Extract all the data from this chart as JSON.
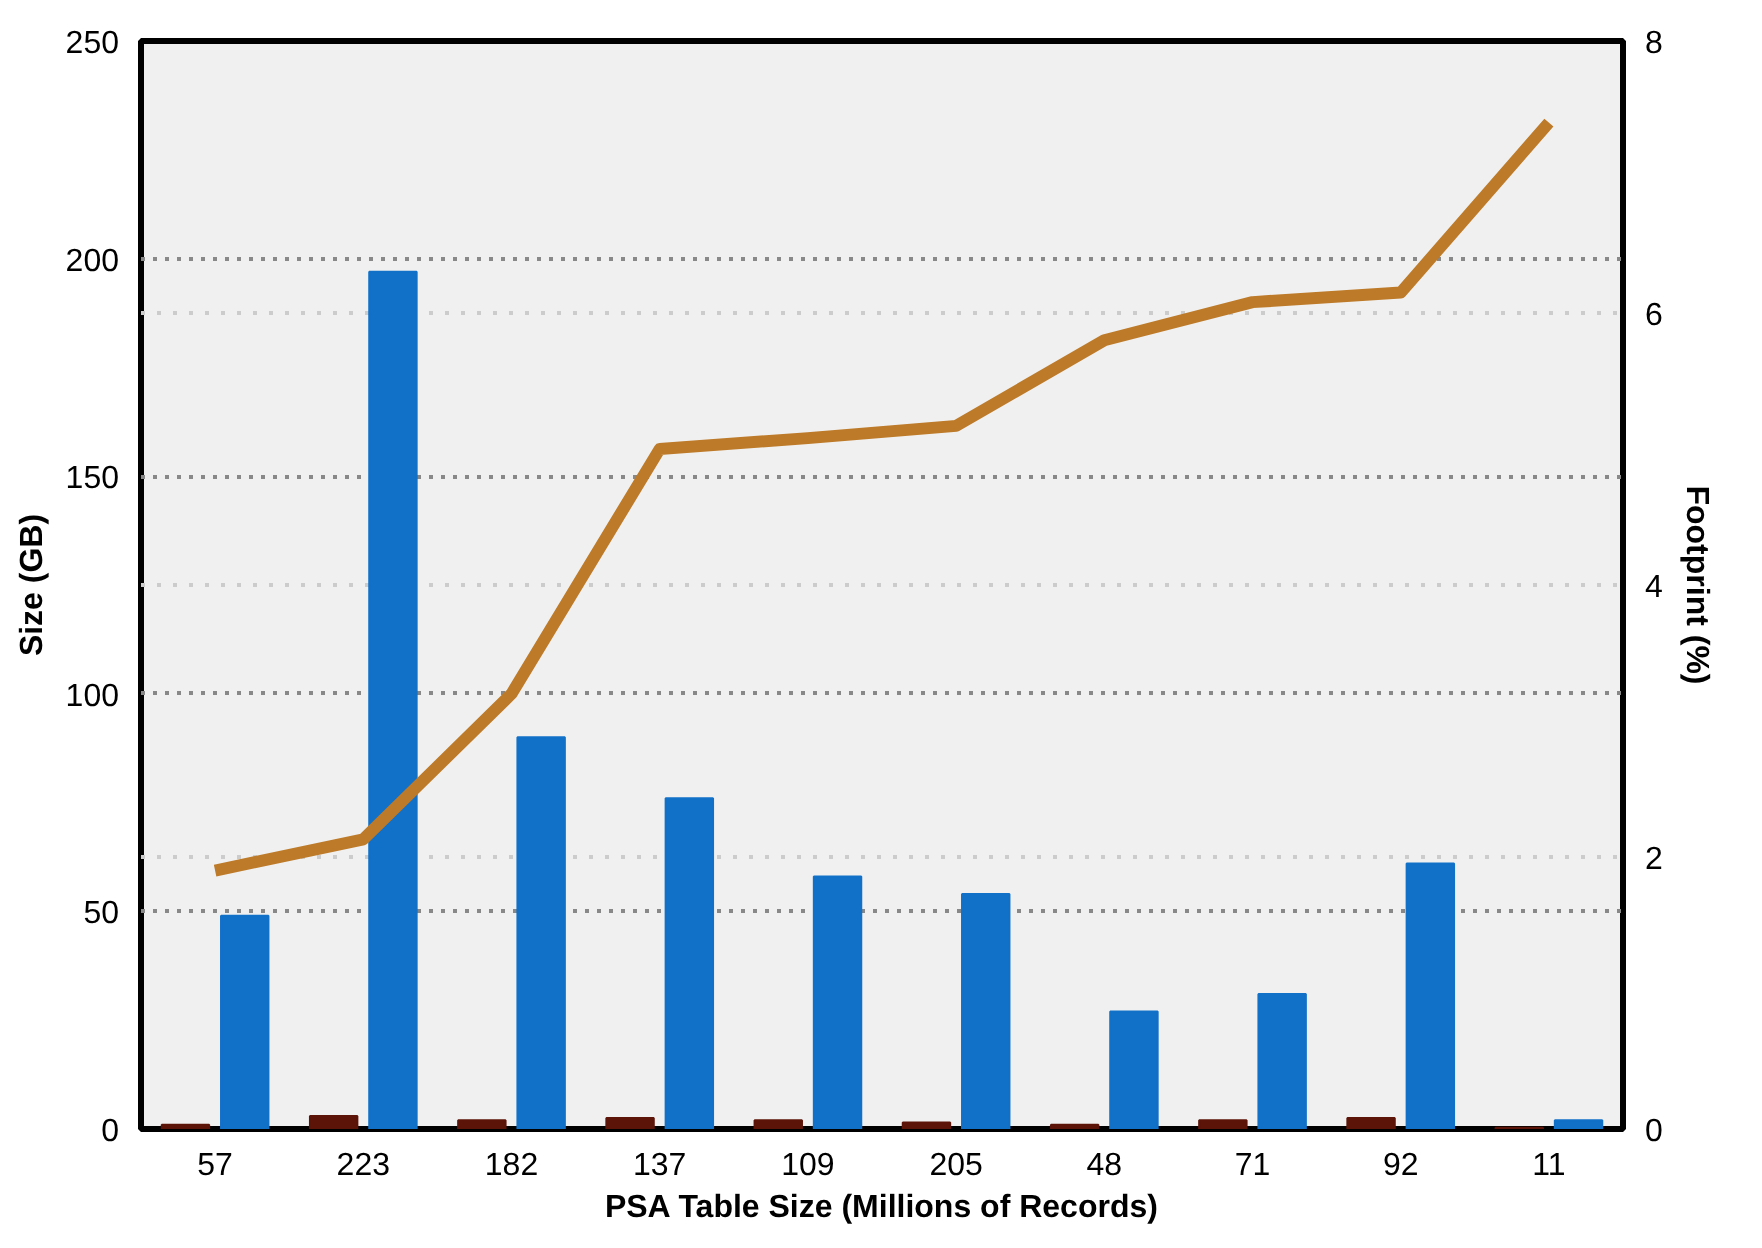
{
  "chart_data": {
    "type": "bar",
    "xlabel": "PSA Table Size (Millions of Records)",
    "ylabel": "Size (GB)",
    "y2label": "Footprint (%)",
    "categories": [
      "57",
      "223",
      "182",
      "137",
      "109",
      "205",
      "48",
      "71",
      "92",
      "11"
    ],
    "series": [
      {
        "color": "#5c1408",
        "values": [
          1,
          3,
          2,
          2.5,
          2,
          1.5,
          1,
          2,
          2.5,
          0.3
        ]
      },
      {
        "color": "#1170c8",
        "values": [
          49,
          197,
          90,
          76,
          58,
          54,
          27,
          31,
          61,
          2
        ]
      },
      {
        "type": "line",
        "axis": "y2",
        "color": "#bd7a28",
        "values": [
          1.9,
          2.13,
          3.2,
          5.0,
          5.08,
          5.17,
          5.8,
          6.08,
          6.15,
          7.4
        ]
      }
    ],
    "ylim": [
      0,
      250
    ],
    "yticks": [
      0,
      50,
      100,
      150,
      200,
      250
    ],
    "y2lim": [
      0,
      8
    ],
    "y2ticks": [
      0,
      2,
      4,
      6,
      8
    ],
    "grid": "y"
  }
}
